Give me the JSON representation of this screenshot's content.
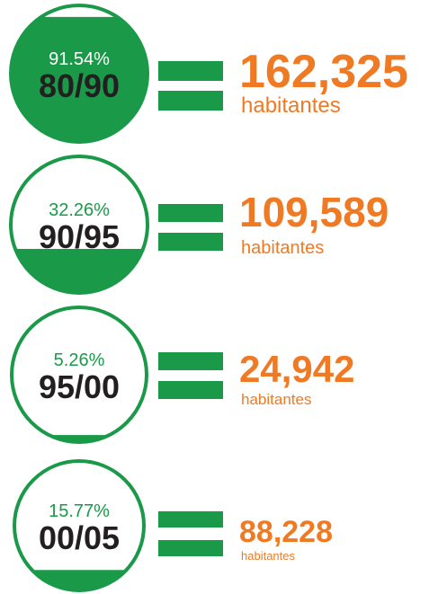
{
  "items": [
    {
      "percent": 91.54,
      "percent_label": "91.54%",
      "period": "80/90",
      "value": "162,325",
      "unit": "habitantes"
    },
    {
      "percent": 32.26,
      "percent_label": "32.26%",
      "period": "90/95",
      "value": "109,589",
      "unit": "habitantes"
    },
    {
      "percent": 5.26,
      "percent_label": "5.26%",
      "period": "95/00",
      "value": "24,942",
      "unit": "habitantes"
    },
    {
      "percent": 15.77,
      "percent_label": "15.77%",
      "period": "00/05",
      "value": "88,228",
      "unit": "habitantes"
    }
  ]
}
